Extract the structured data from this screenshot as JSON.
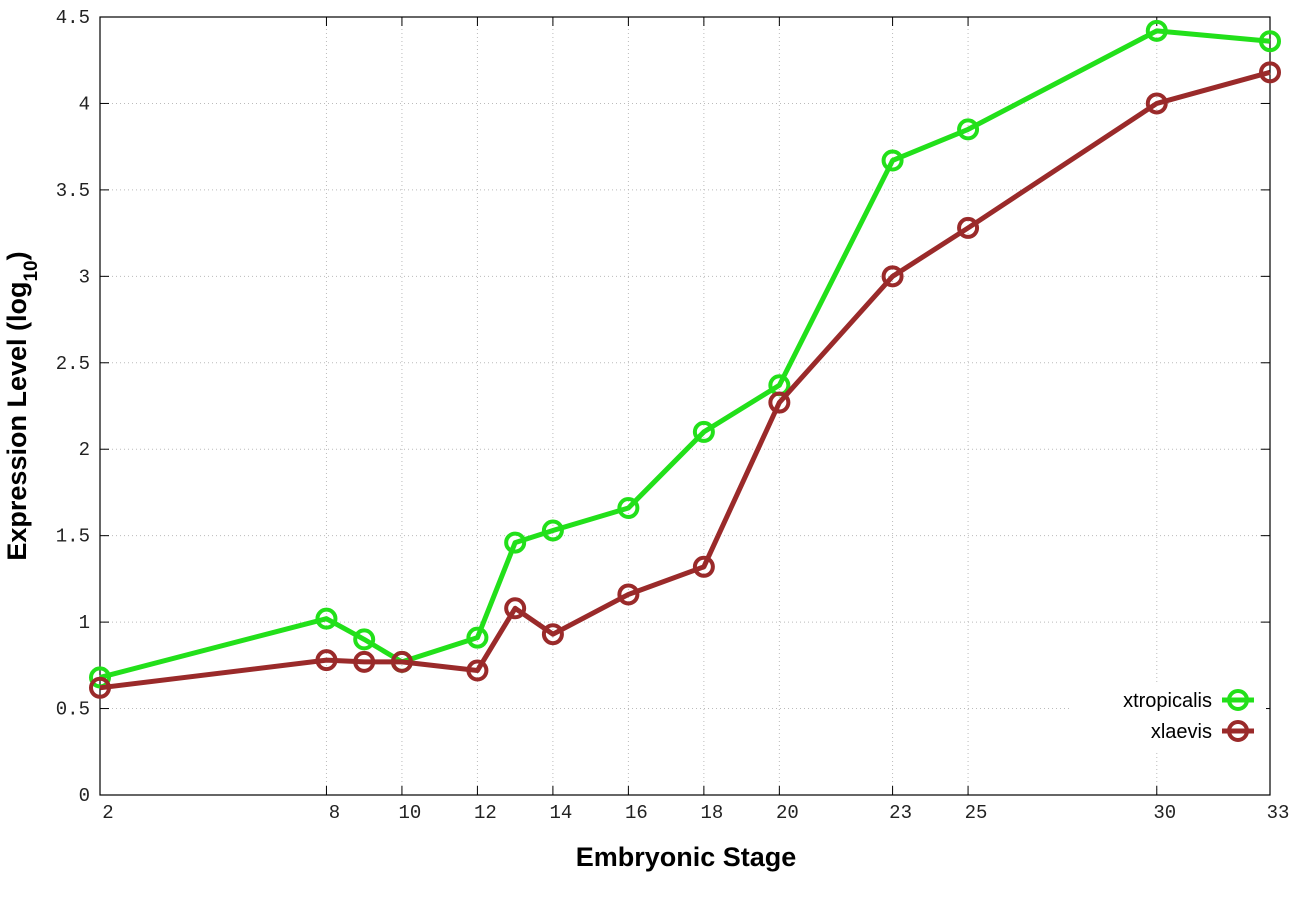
{
  "chart_data": {
    "type": "line",
    "x_label": "Embryonic Stage",
    "y_label_parts": [
      "Expression Level (log",
      "10",
      ")"
    ],
    "x": [
      2,
      8,
      9,
      10,
      12,
      13,
      14,
      16,
      18,
      20,
      23,
      25,
      30,
      33
    ],
    "series": [
      {
        "name": "xtropicalis",
        "color": "#22e01a",
        "values": [
          0.68,
          1.02,
          0.9,
          0.77,
          0.91,
          1.46,
          1.53,
          1.66,
          2.1,
          2.37,
          3.67,
          3.85,
          4.42,
          4.36
        ]
      },
      {
        "name": "xlaevis",
        "color": "#9a2a2a",
        "values": [
          0.62,
          0.78,
          0.77,
          0.77,
          0.72,
          1.08,
          0.93,
          1.16,
          1.32,
          2.27,
          3.0,
          3.28,
          4.0,
          4.18
        ]
      }
    ],
    "xlim": [
      2,
      33
    ],
    "xticks": [
      2,
      8,
      10,
      12,
      14,
      16,
      18,
      20,
      23,
      25,
      30,
      33
    ],
    "ylim": [
      0,
      4.5
    ],
    "yticks": [
      0,
      0.5,
      1,
      1.5,
      2,
      2.5,
      3,
      3.5,
      4,
      4.5
    ],
    "grid": true,
    "legend": "lower right"
  }
}
